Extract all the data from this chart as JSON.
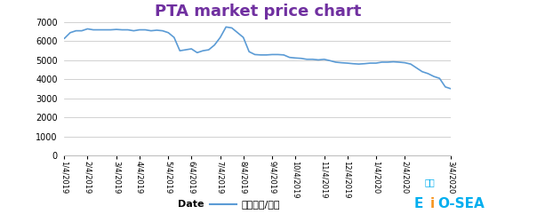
{
  "title": "PTA market price chart",
  "title_color": "#7030A0",
  "title_fontsize": 13,
  "line_color": "#5B9BD5",
  "line_label": "价格（元/吨）",
  "ylim": [
    0,
    7000
  ],
  "yticks": [
    0,
    1000,
    2000,
    3000,
    4000,
    5000,
    6000,
    7000
  ],
  "background_color": "#FFFFFF",
  "dates": [
    "1/4/2019",
    "2/4/2019",
    "3/4/2019",
    "4/4/2019",
    "5/4/2019",
    "6/4/2019",
    "7/4/2019",
    "8/4/2019",
    "9/4/2019",
    "10/4/2019",
    "11/4/2019",
    "12/4/2019",
    "1/4/2020",
    "2/4/2020",
    "3/4/2020"
  ],
  "values": [
    6150,
    6450,
    6550,
    6550,
    6650,
    6600,
    6600,
    6600,
    6600,
    6620,
    6600,
    6600,
    6550,
    6600,
    6600,
    6550,
    6580,
    6550,
    6450,
    6200,
    5500,
    5550,
    5600,
    5400,
    5500,
    5550,
    5800,
    6200,
    6750,
    6700,
    6450,
    6200,
    5450,
    5300,
    5280,
    5280,
    5300,
    5300,
    5280,
    5150,
    5120,
    5100,
    5050,
    5050,
    5020,
    5050,
    4980,
    4900,
    4870,
    4850,
    4820,
    4800,
    4820,
    4850,
    4850,
    4900,
    4900,
    4920,
    4900,
    4870,
    4800,
    4600,
    4400,
    4300,
    4150,
    4050,
    3600,
    3500
  ],
  "n_xticks": 15,
  "xtick_positions": [
    0,
    4,
    9,
    13,
    18,
    22,
    27,
    31,
    36,
    40,
    45,
    49,
    54,
    59,
    67
  ],
  "grid_color": "#BFBFBF",
  "figsize": [
    6.04,
    2.5
  ],
  "dpi": 100,
  "xlabel": "Date",
  "xlabel_fontsize": 8,
  "legend_fontsize": 8
}
